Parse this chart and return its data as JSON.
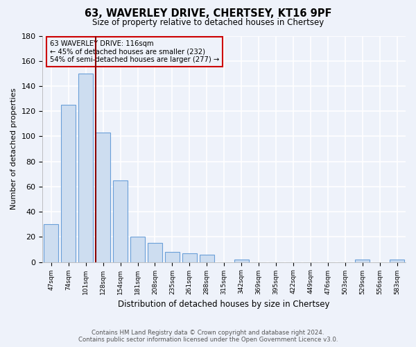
{
  "title": "63, WAVERLEY DRIVE, CHERTSEY, KT16 9PF",
  "subtitle": "Size of property relative to detached houses in Chertsey",
  "xlabel": "Distribution of detached houses by size in Chertsey",
  "ylabel": "Number of detached properties",
  "bin_labels": [
    "47sqm",
    "74sqm",
    "101sqm",
    "128sqm",
    "154sqm",
    "181sqm",
    "208sqm",
    "235sqm",
    "261sqm",
    "288sqm",
    "315sqm",
    "342sqm",
    "369sqm",
    "395sqm",
    "422sqm",
    "449sqm",
    "476sqm",
    "503sqm",
    "529sqm",
    "556sqm",
    "583sqm"
  ],
  "bar_heights": [
    30,
    125,
    150,
    103,
    65,
    20,
    15,
    8,
    7,
    6,
    0,
    2,
    0,
    0,
    0,
    0,
    0,
    0,
    2,
    0,
    2
  ],
  "bar_color": "#cdddf0",
  "bar_edge_color": "#6a9fd8",
  "ylim": [
    0,
    180
  ],
  "yticks": [
    0,
    20,
    40,
    60,
    80,
    100,
    120,
    140,
    160,
    180
  ],
  "red_line_bin_index": 2.57,
  "annotation_text_line1": "63 WAVERLEY DRIVE: 116sqm",
  "annotation_text_line2": "← 45% of detached houses are smaller (232)",
  "annotation_text_line3": "54% of semi-detached houses are larger (277) →",
  "footer_line1": "Contains HM Land Registry data © Crown copyright and database right 2024.",
  "footer_line2": "Contains public sector information licensed under the Open Government Licence v3.0.",
  "background_color": "#eef2fa",
  "grid_color": "#ffffff"
}
